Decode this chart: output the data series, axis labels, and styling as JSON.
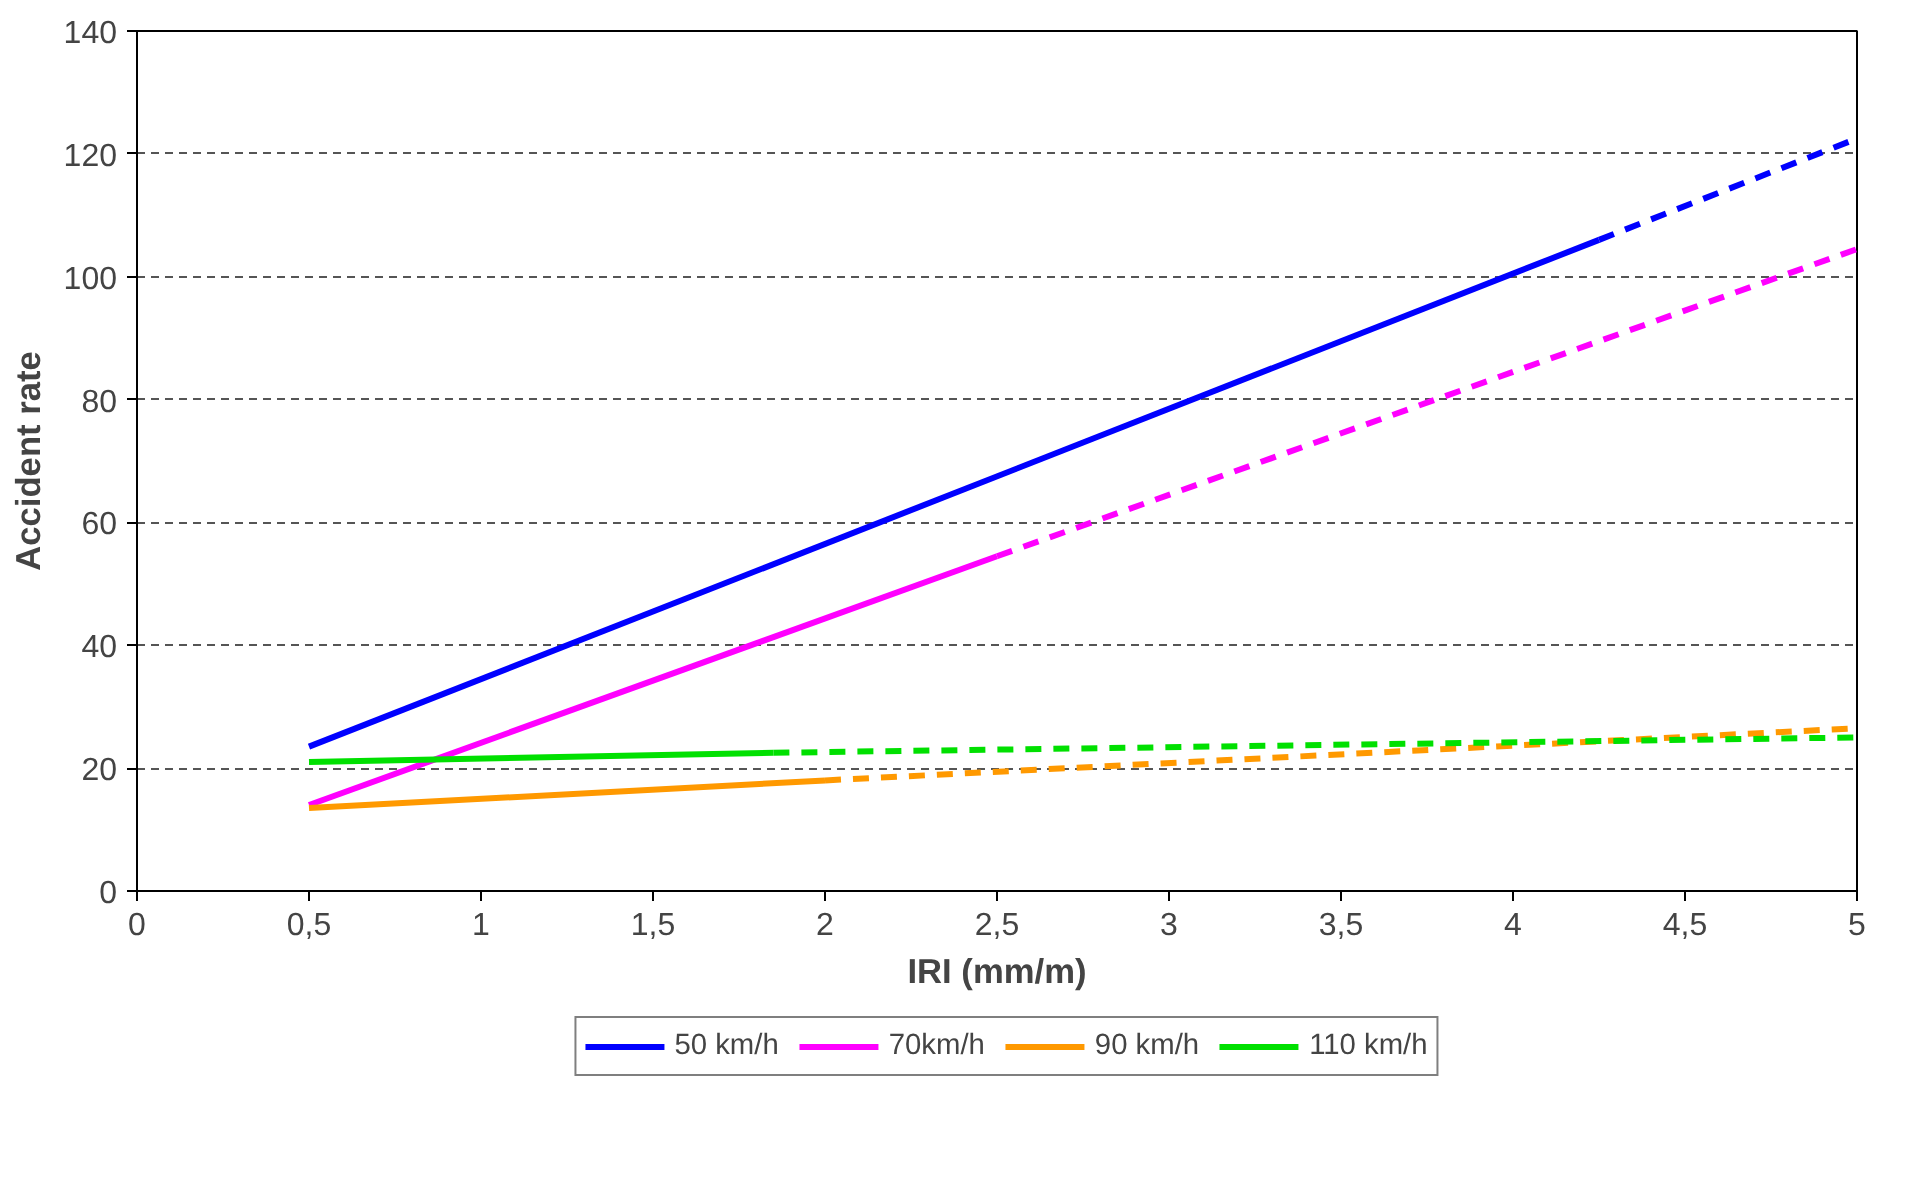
{
  "chart_data": {
    "type": "line",
    "xlabel": "IRI (mm/m)",
    "ylabel": "Accident rate",
    "xlim": [
      0,
      5
    ],
    "ylim": [
      0,
      140
    ],
    "xticks": [
      0,
      {
        "value": 0.5,
        "label": "0,5"
      },
      1,
      {
        "value": 1.5,
        "label": "1,5"
      },
      2,
      {
        "value": 2.5,
        "label": "2,5"
      },
      3,
      {
        "value": 3.5,
        "label": "3,5"
      },
      4,
      {
        "value": 4.5,
        "label": "4,5"
      },
      5
    ],
    "yticks": [
      0,
      20,
      40,
      60,
      80,
      100,
      120,
      140
    ],
    "grid": "y",
    "legend": "bottom",
    "marker": "none",
    "series": [
      {
        "name": "50 km/h",
        "color": "#0000ff",
        "line_style": "solid",
        "x": [
          0.5,
          4.25
        ],
        "values": [
          23.5,
          106
        ]
      },
      {
        "name": "70km/h",
        "color": "#ff00ff",
        "line_style": "solid",
        "x": [
          0.5,
          2.5
        ],
        "values": [
          14,
          54.5
        ]
      },
      {
        "name": "90 km/h",
        "color": "#ff9900",
        "line_style": "solid",
        "x": [
          0.5,
          2.0
        ],
        "values": [
          13.5,
          18
        ]
      },
      {
        "name": "110 km/h",
        "color": "#00e000",
        "line_style": "solid",
        "x": [
          0.5,
          1.85
        ],
        "values": [
          21,
          22.5
        ]
      },
      {
        "color": "#0000ff",
        "line_style": "dashed",
        "x": [
          4.25,
          5
        ],
        "values": [
          106,
          122.5
        ]
      },
      {
        "color": "#ff00ff",
        "line_style": "dashed",
        "x": [
          2.5,
          5
        ],
        "values": [
          54.5,
          104.5
        ]
      },
      {
        "color": "#ff9900",
        "line_style": "dashed",
        "x": [
          2.0,
          5
        ],
        "values": [
          18,
          26.5
        ]
      },
      {
        "color": "#00e000",
        "line_style": "dashed",
        "x": [
          1.85,
          5
        ],
        "values": [
          22.5,
          25
        ]
      }
    ]
  }
}
